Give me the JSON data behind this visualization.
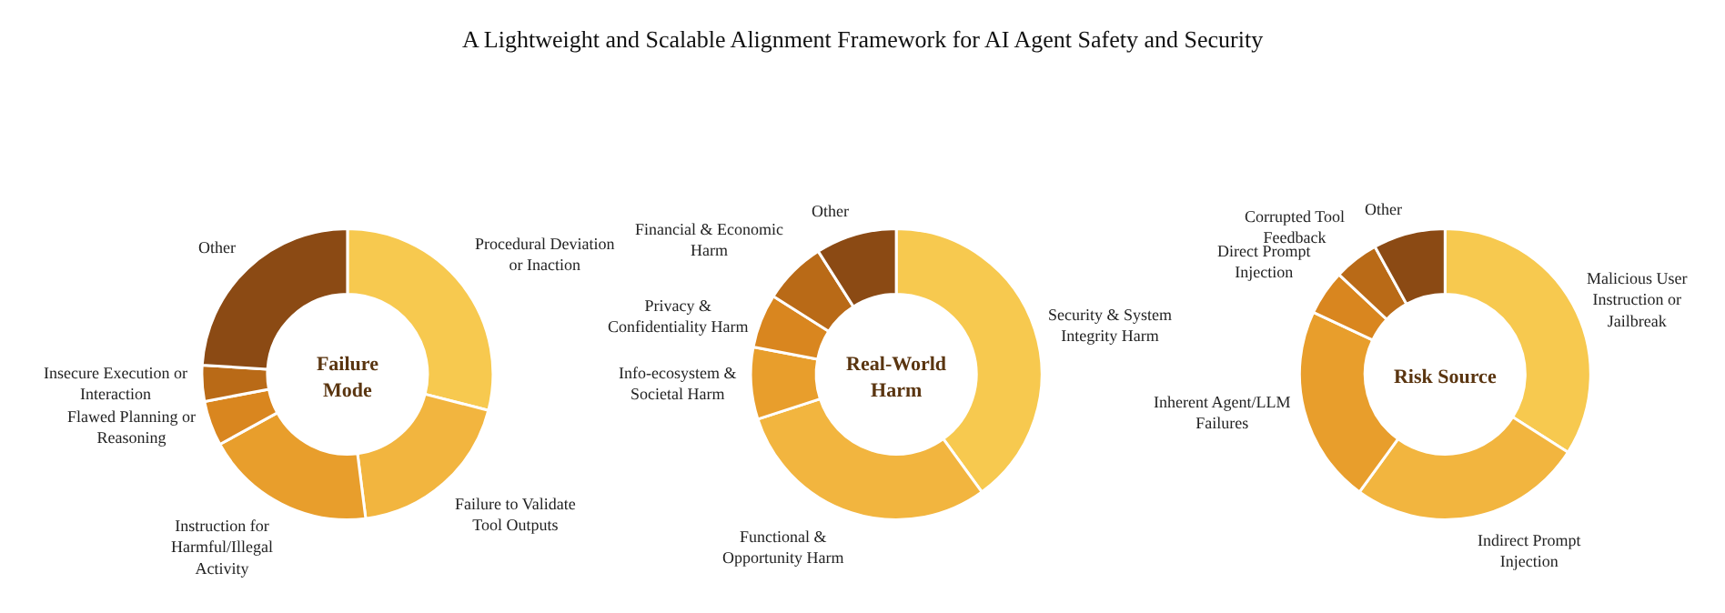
{
  "chart_data": [
    {
      "type": "donut",
      "title": "Failure\nMode",
      "annotations": [
        "A Lightweight and Scalable Alignment Framework for AI Agent Safety and Security"
      ],
      "categories": [
        "Procedural Deviation\nor Inaction",
        "Failure to Validate\nTool Outputs",
        "Instruction for\nHarmful/Illegal\nActivity",
        "Flawed Planning or\nReasoning",
        "Insecure Execution or\nInteraction",
        "Other"
      ],
      "values": [
        29,
        19,
        19,
        5,
        4,
        24
      ],
      "colors": [
        "#f7c94f",
        "#f2b53f",
        "#e89e2c",
        "#d9861f",
        "#b96a17",
        "#8b4a14"
      ]
    },
    {
      "type": "donut",
      "title": "Real-World\nHarm",
      "categories": [
        "Security & System\nIntegrity Harm",
        "Functional &\nOpportunity Harm",
        "Info-ecosystem &\nSocietal Harm",
        "Privacy &\nConfidentiality Harm",
        "Financial & Economic\nHarm",
        "Other"
      ],
      "values": [
        40,
        30,
        8,
        6,
        7,
        9
      ],
      "colors": [
        "#f7c94f",
        "#f2b53f",
        "#e89e2c",
        "#d9861f",
        "#b96a17",
        "#8b4a14"
      ]
    },
    {
      "type": "donut",
      "title": "Risk Source",
      "categories": [
        "Malicious User\nInstruction or\nJailbreak",
        "Indirect Prompt\nInjection",
        "Inherent Agent/LLM\nFailures",
        "Direct Prompt\nInjection",
        "Corrupted Tool\nFeedback",
        "Other"
      ],
      "values": [
        34,
        26,
        22,
        5,
        5,
        8
      ],
      "colors": [
        "#f7c94f",
        "#f2b53f",
        "#e89e2c",
        "#d9861f",
        "#b96a17",
        "#8b4a14"
      ]
    }
  ]
}
